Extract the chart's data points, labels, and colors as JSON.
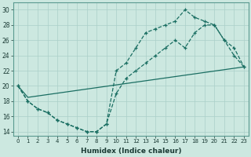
{
  "xlabel": "Humidex (Indice chaleur)",
  "ylabel": "",
  "xlim": [
    -0.5,
    23.5
  ],
  "ylim": [
    13.5,
    31
  ],
  "xticks": [
    0,
    1,
    2,
    3,
    4,
    5,
    6,
    7,
    8,
    9,
    10,
    11,
    12,
    13,
    14,
    15,
    16,
    17,
    18,
    19,
    20,
    21,
    22,
    23
  ],
  "yticks": [
    14,
    16,
    18,
    20,
    22,
    24,
    26,
    28,
    30
  ],
  "bg_color": "#cce8e0",
  "line_color": "#1a6e62",
  "grid_color": "#aacfc8",
  "line1_x": [
    0,
    1,
    2,
    3,
    4,
    5,
    6,
    7,
    8,
    9,
    10,
    11,
    12,
    13,
    14,
    15,
    16,
    17,
    18,
    19,
    20,
    21,
    22,
    23
  ],
  "line1_y": [
    20,
    18,
    17,
    16.5,
    15.5,
    15,
    14.5,
    14,
    14,
    15,
    22,
    23,
    25,
    27,
    27.5,
    28,
    28.5,
    30,
    29,
    28.5,
    28,
    26,
    24,
    22.5
  ],
  "line2_x": [
    0,
    1,
    2,
    3,
    4,
    5,
    6,
    7,
    8,
    9,
    10,
    11,
    12,
    13,
    14,
    15,
    16,
    17,
    18,
    19,
    20,
    21,
    22,
    23
  ],
  "line2_y": [
    20,
    18,
    17,
    16.5,
    15.5,
    15,
    14.5,
    14,
    14,
    15,
    19,
    21,
    22,
    23,
    24,
    25,
    26,
    25,
    27,
    28,
    28,
    26,
    25,
    22.5
  ],
  "line3_x": [
    0,
    1,
    23
  ],
  "line3_y": [
    20,
    18.5,
    22.5
  ]
}
